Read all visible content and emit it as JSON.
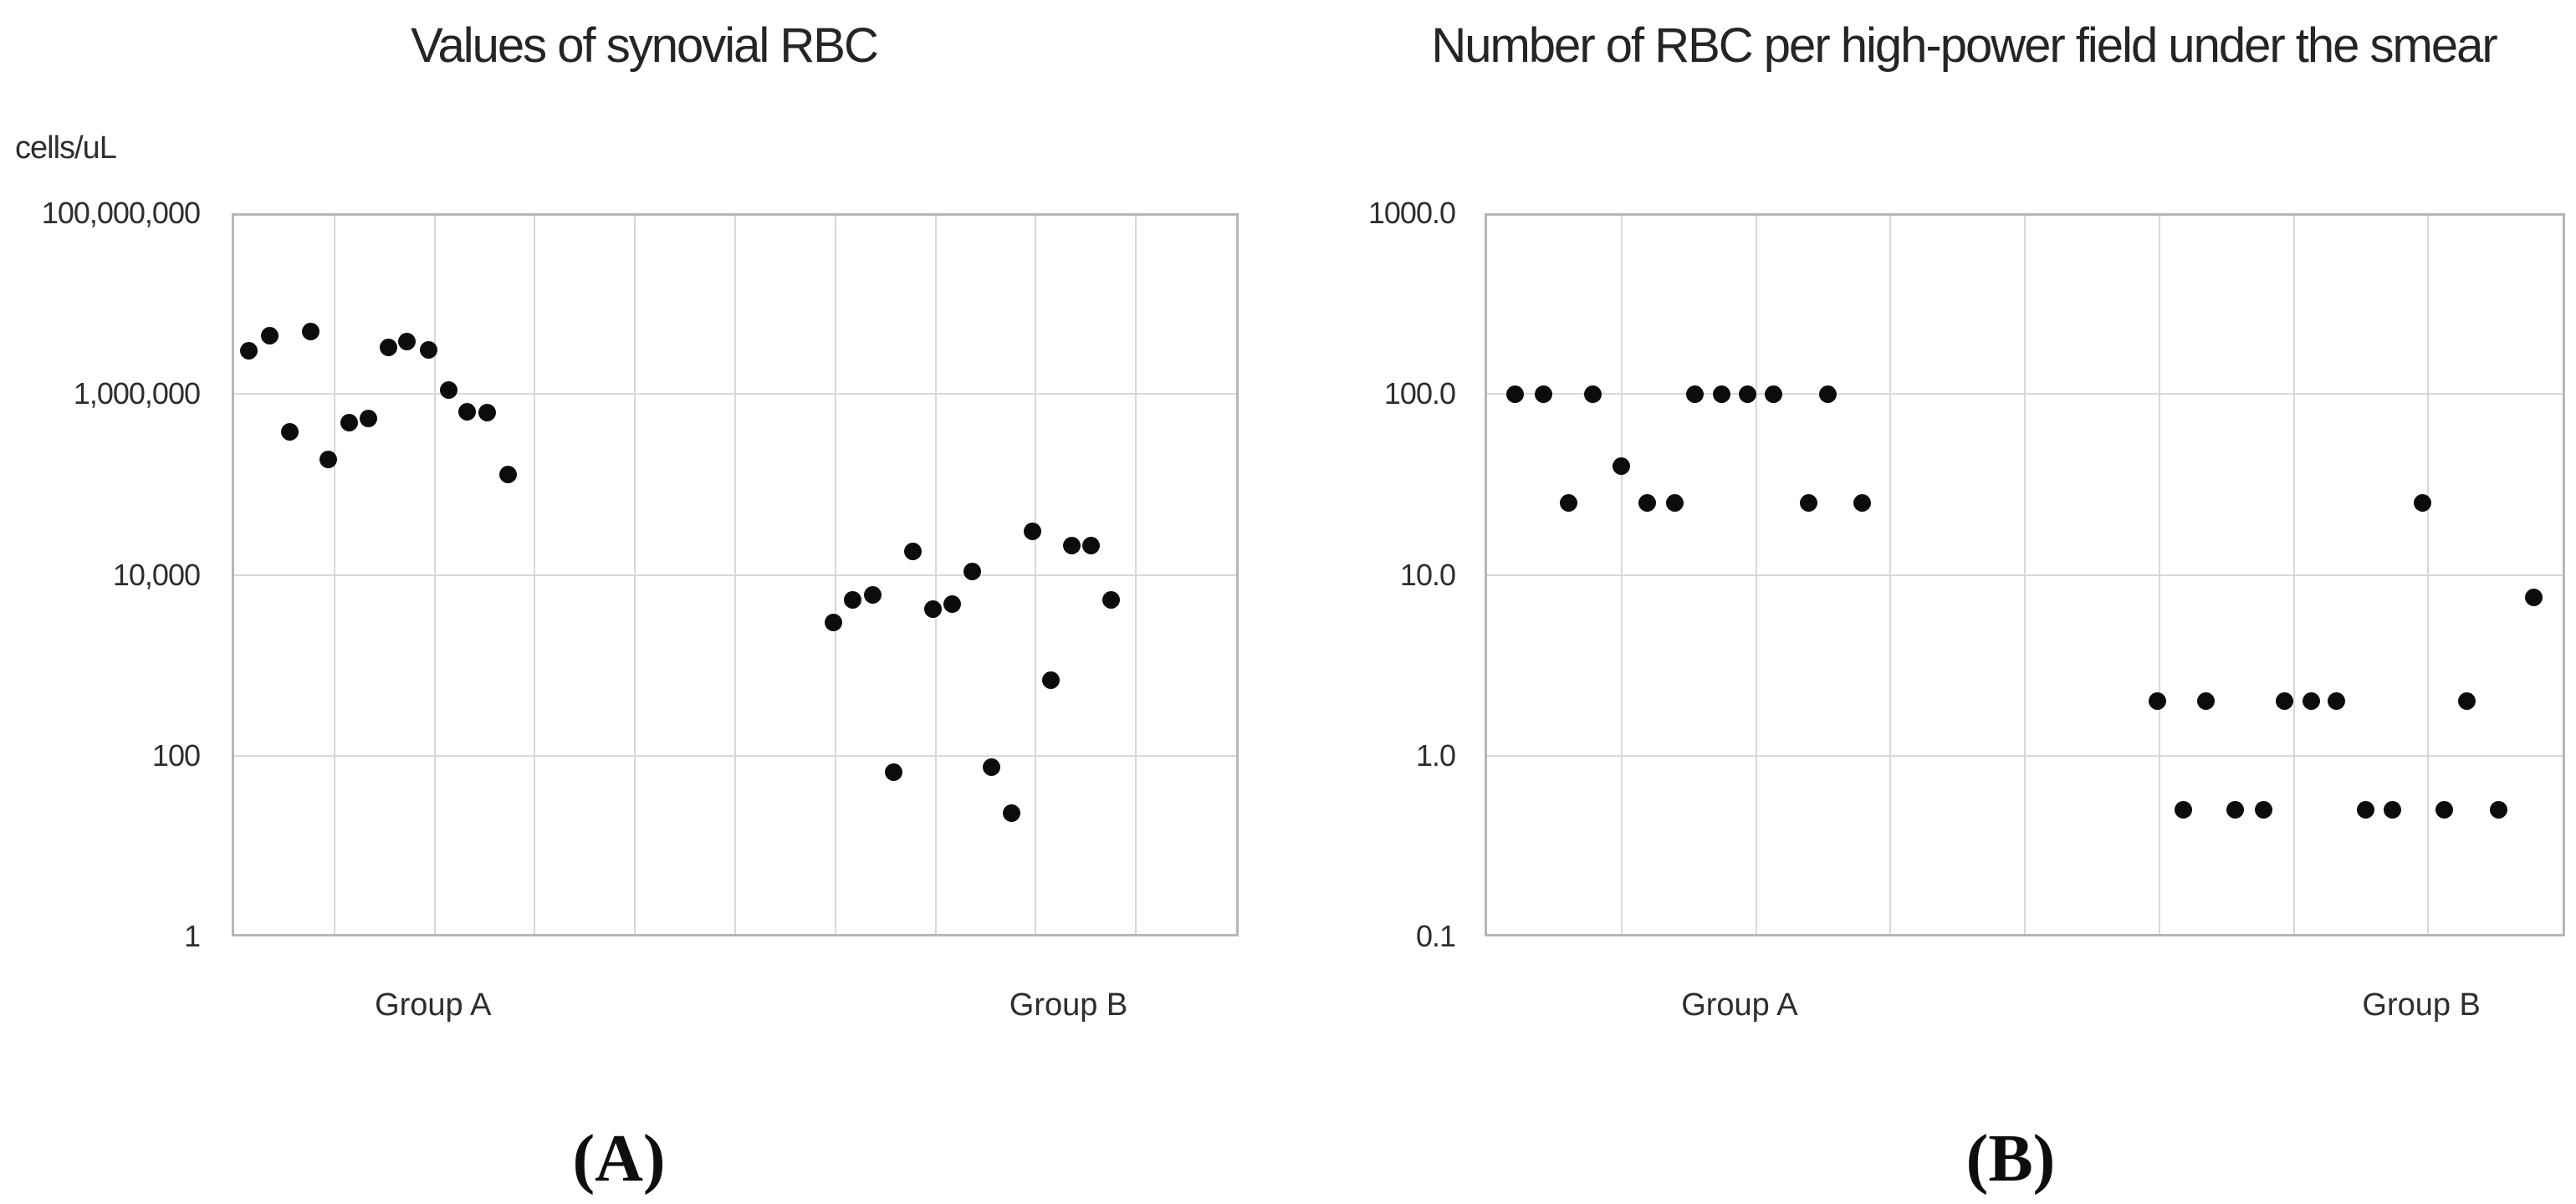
{
  "figure": {
    "background_color": "#ffffff",
    "marker_color": "#0c0c0c",
    "gridline_color": "#d8d8d8",
    "border_color": "#b3b7b9"
  },
  "chart_data": [
    {
      "type": "scatter",
      "panel_letter": "(A)",
      "title": "Values of synovial RBC",
      "y_axis_unit": "cells/uL",
      "y_scale": "log",
      "ylim": [
        1,
        100000000
      ],
      "y_tick_labels": [
        "100,000,000",
        "1,000,000",
        "10,000",
        "100",
        "1"
      ],
      "y_tick_values": [
        100000000,
        1000000,
        10000,
        100,
        1
      ],
      "x_grid_divisions": 10,
      "grid": true,
      "legend": "none",
      "x_category_labels": [
        {
          "label": "Group A",
          "xf": 0.2
        },
        {
          "label": "Group B",
          "xf": 0.831
        }
      ],
      "series": [
        {
          "name": "Group A",
          "points": [
            {
              "xf": 0.0174,
              "value": 3000000
            },
            {
              "xf": 0.0382,
              "value": 4400000
            },
            {
              "xf": 0.0581,
              "value": 380000
            },
            {
              "xf": 0.0781,
              "value": 4900000
            },
            {
              "xf": 0.0963,
              "value": 190000
            },
            {
              "xf": 0.1171,
              "value": 480000
            },
            {
              "xf": 0.1362,
              "value": 540000
            },
            {
              "xf": 0.1561,
              "value": 3300000
            },
            {
              "xf": 0.1744,
              "value": 3800000
            },
            {
              "xf": 0.196,
              "value": 3100000
            },
            {
              "xf": 0.2159,
              "value": 1100000
            },
            {
              "xf": 0.2342,
              "value": 630000
            },
            {
              "xf": 0.2541,
              "value": 620000
            },
            {
              "xf": 0.2741,
              "value": 130000
            }
          ]
        },
        {
          "name": "Group B",
          "points": [
            {
              "xf": 0.598,
              "value": 3000
            },
            {
              "xf": 0.6171,
              "value": 5300
            },
            {
              "xf": 0.637,
              "value": 6000
            },
            {
              "xf": 0.6578,
              "value": 65
            },
            {
              "xf": 0.6769,
              "value": 18000
            },
            {
              "xf": 0.6968,
              "value": 4200
            },
            {
              "xf": 0.7159,
              "value": 4700
            },
            {
              "xf": 0.7358,
              "value": 11000
            },
            {
              "xf": 0.7549,
              "value": 75
            },
            {
              "xf": 0.7749,
              "value": 23
            },
            {
              "xf": 0.7956,
              "value": 30000
            },
            {
              "xf": 0.8139,
              "value": 680
            },
            {
              "xf": 0.8347,
              "value": 21000
            },
            {
              "xf": 0.8538,
              "value": 21000
            },
            {
              "xf": 0.8737,
              "value": 5300
            }
          ]
        }
      ]
    },
    {
      "type": "scatter",
      "panel_letter": "(B)",
      "title": "Number of RBC per high-power field under the smear",
      "y_axis_unit": "",
      "y_scale": "log",
      "ylim": [
        0.1,
        1000
      ],
      "y_tick_labels": [
        "1000.0",
        "100.0",
        "10.0",
        "1.0",
        "0.1"
      ],
      "y_tick_values": [
        1000,
        100,
        10,
        1,
        0.1
      ],
      "x_grid_divisions": 8,
      "grid": true,
      "legend": "none",
      "x_category_labels": [
        {
          "label": "Group A",
          "xf": 0.236
        },
        {
          "label": "Group B",
          "xf": 0.867
        }
      ],
      "series": [
        {
          "name": "Group A",
          "points": [
            {
              "xf": 0.0286,
              "value": 100
            },
            {
              "xf": 0.0542,
              "value": 100
            },
            {
              "xf": 0.0774,
              "value": 25
            },
            {
              "xf": 0.1006,
              "value": 100
            },
            {
              "xf": 0.1269,
              "value": 40
            },
            {
              "xf": 0.1509,
              "value": 25
            },
            {
              "xf": 0.1757,
              "value": 25
            },
            {
              "xf": 0.195,
              "value": 100
            },
            {
              "xf": 0.2198,
              "value": 100
            },
            {
              "xf": 0.2438,
              "value": 100
            },
            {
              "xf": 0.2678,
              "value": 100
            },
            {
              "xf": 0.3003,
              "value": 25
            },
            {
              "xf": 0.3181,
              "value": 100
            },
            {
              "xf": 0.3491,
              "value": 25
            }
          ]
        },
        {
          "name": "Group B",
          "points": [
            {
              "xf": 0.6223,
              "value": 2
            },
            {
              "xf": 0.647,
              "value": 0.5
            },
            {
              "xf": 0.6679,
              "value": 2
            },
            {
              "xf": 0.695,
              "value": 0.5
            },
            {
              "xf": 0.7213,
              "value": 0.5
            },
            {
              "xf": 0.7407,
              "value": 2
            },
            {
              "xf": 0.7654,
              "value": 2
            },
            {
              "xf": 0.7886,
              "value": 2
            },
            {
              "xf": 0.8157,
              "value": 0.5
            },
            {
              "xf": 0.8405,
              "value": 0.5
            },
            {
              "xf": 0.8684,
              "value": 25
            },
            {
              "xf": 0.8885,
              "value": 0.5
            },
            {
              "xf": 0.9094,
              "value": 2
            },
            {
              "xf": 0.9388,
              "value": 0.5
            },
            {
              "xf": 0.971,
              "value": 7.5
            }
          ]
        }
      ]
    }
  ]
}
